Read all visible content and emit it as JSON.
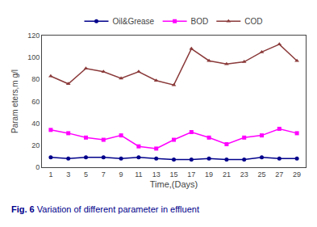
{
  "chart_data": {
    "type": "line",
    "x": [
      1,
      3,
      5,
      7,
      9,
      11,
      13,
      15,
      17,
      19,
      21,
      23,
      25,
      27,
      29
    ],
    "series": [
      {
        "name": "Oil&Grease",
        "color": "#00008B",
        "marker": "circle",
        "values": [
          9,
          8,
          9,
          9,
          8,
          9,
          8,
          7,
          7,
          8,
          7,
          7,
          9,
          8,
          8
        ]
      },
      {
        "name": "BOD",
        "color": "#FF00FF",
        "marker": "square",
        "values": [
          34,
          31,
          27,
          25,
          29,
          19,
          17,
          25,
          32,
          27,
          21,
          27,
          29,
          35,
          31
        ]
      },
      {
        "name": "COD",
        "color": "#8B3A3A",
        "marker": "triangle-up",
        "values": [
          83,
          76,
          90,
          87,
          81,
          87,
          79,
          75,
          108,
          97,
          94,
          96,
          105,
          112,
          97
        ]
      }
    ],
    "xlabel": "Time,(Days)",
    "ylabel": "Param eters,m g/l",
    "xlim": [
      0,
      30
    ],
    "xticks": [
      1,
      3,
      5,
      7,
      9,
      11,
      13,
      15,
      17,
      19,
      21,
      23,
      25,
      27,
      29
    ],
    "ylim": [
      0,
      120
    ],
    "yticks": [
      0,
      20,
      40,
      60,
      80,
      100,
      120
    ],
    "grid": false,
    "legend": "top",
    "annotations": [
      {
        "text": "Fig. 6",
        "color": "#00008B"
      },
      {
        "text": "Variation of different parameter in effluent",
        "color": "#00008B"
      }
    ]
  }
}
